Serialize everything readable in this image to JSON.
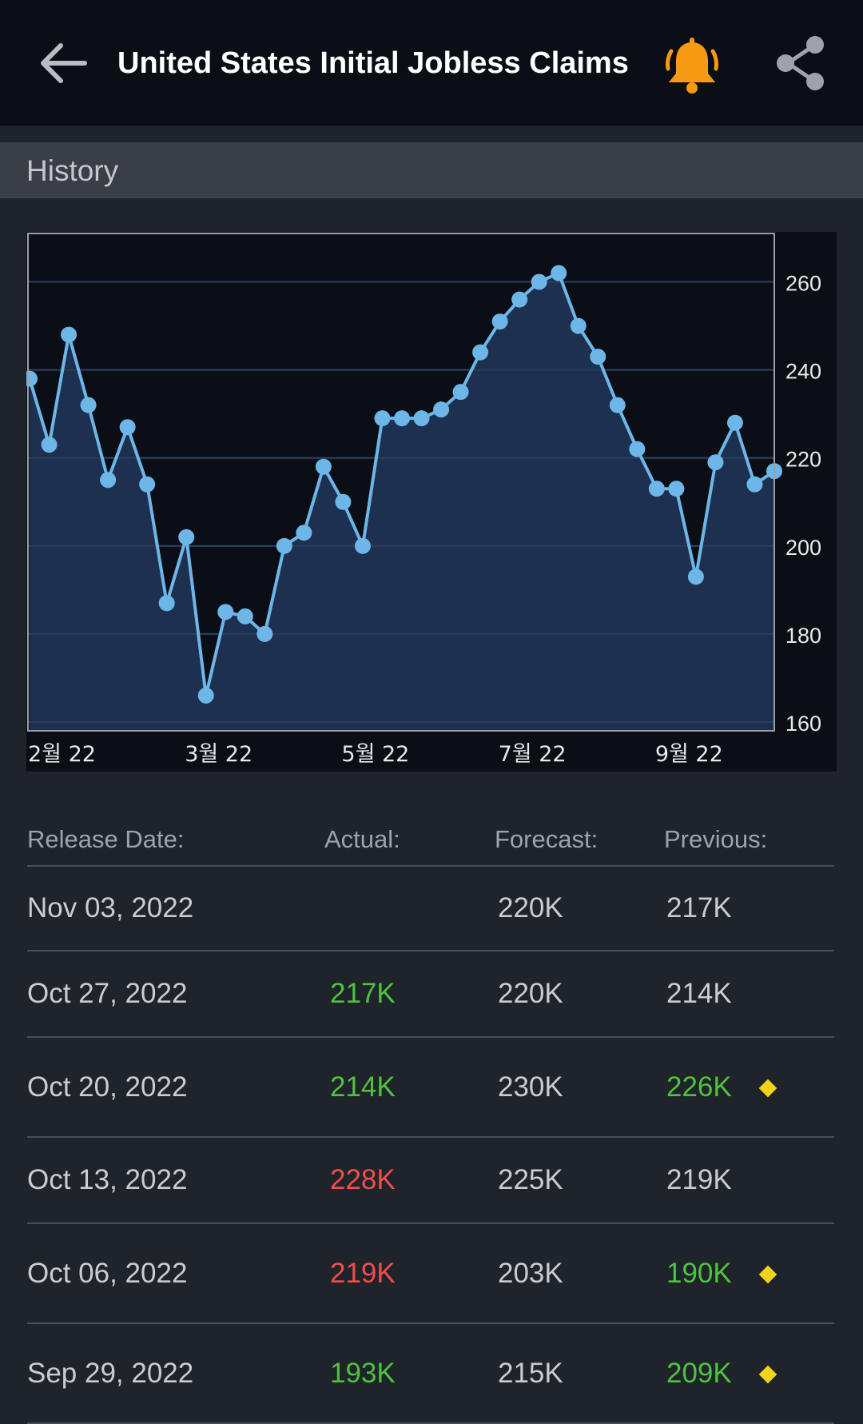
{
  "header": {
    "title": "United States Initial Jobless Claims",
    "bell_color": "#f59a12"
  },
  "section": {
    "history_label": "History"
  },
  "chart_data": {
    "type": "area",
    "title": "",
    "xlabel": "",
    "ylabel": "",
    "y_ticks": [
      "260",
      "240",
      "220",
      "200",
      "180",
      "160"
    ],
    "x_ticks": [
      "2월 22",
      "3월 22",
      "5월 22",
      "7월 22",
      "9월 22"
    ],
    "ylim": [
      158,
      271
    ],
    "grid": true,
    "line_color": "#6db6e8",
    "fill_color": "#203352",
    "series": [
      {
        "values": [
          238,
          223,
          248,
          232,
          215,
          227,
          214,
          187,
          202,
          166,
          185,
          184,
          180,
          200,
          203,
          218,
          210,
          200,
          229,
          229,
          229,
          231,
          235,
          244,
          251,
          256,
          260,
          262,
          250,
          243,
          232,
          222,
          213,
          213,
          193,
          219,
          228,
          214,
          217
        ]
      }
    ]
  },
  "table": {
    "headers": {
      "date": "Release Date:",
      "actual": "Actual:",
      "forecast": "Forecast:",
      "previous": "Previous:"
    },
    "rows": [
      {
        "date": "Nov 03, 2022",
        "actual": "",
        "actual_status": "none",
        "forecast": "220K",
        "previous": "217K",
        "previous_status": "none",
        "revised": false
      },
      {
        "date": "Oct 27, 2022",
        "actual": "217K",
        "actual_status": "better",
        "forecast": "220K",
        "previous": "214K",
        "previous_status": "none",
        "revised": false
      },
      {
        "date": "Oct 20, 2022",
        "actual": "214K",
        "actual_status": "better",
        "forecast": "230K",
        "previous": "226K",
        "previous_status": "better",
        "revised": true
      },
      {
        "date": "Oct 13, 2022",
        "actual": "228K",
        "actual_status": "worse",
        "forecast": "225K",
        "previous": "219K",
        "previous_status": "none",
        "revised": false
      },
      {
        "date": "Oct 06, 2022",
        "actual": "219K",
        "actual_status": "worse",
        "forecast": "203K",
        "previous": "190K",
        "previous_status": "better",
        "revised": true
      },
      {
        "date": "Sep 29, 2022",
        "actual": "193K",
        "actual_status": "better",
        "forecast": "215K",
        "previous": "209K",
        "previous_status": "better",
        "revised": true
      }
    ]
  }
}
